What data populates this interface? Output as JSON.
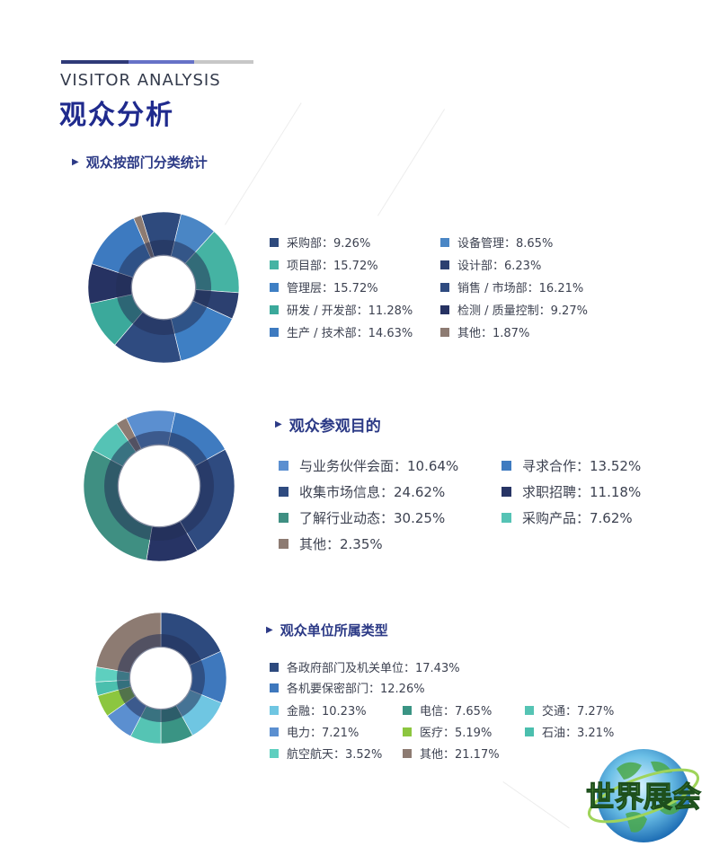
{
  "header": {
    "en_title": "VISITOR ANALYSIS",
    "cn_title": "观众分析"
  },
  "logo": {
    "text": "世界展会"
  },
  "colors": {
    "navy": "#2d4a7e",
    "blue": "#4a86c5",
    "teal": "#46b4a6",
    "mint": "#5ccdbd",
    "steel": "#3e75b8",
    "dark": "#2a3466",
    "green": "#3f8f82",
    "sky": "#6fc6e2",
    "lime": "#8cc63f",
    "brown": "#8d7b72"
  },
  "chart_data": [
    {
      "type": "pie",
      "variant": "donut",
      "title": "观众按部门分类统计",
      "legend_position": "right",
      "series": [
        {
          "label": "采购部",
          "value": 9.26,
          "display": "采购部：9.26%",
          "color": "#2e4a7d"
        },
        {
          "label": "设备管理",
          "value": 8.65,
          "display": "设备管理：8.65%",
          "color": "#4a86c5"
        },
        {
          "label": "项目部",
          "value": 15.72,
          "display": "项目部：15.72%",
          "color": "#45b3a3"
        },
        {
          "label": "设计部",
          "value": 6.23,
          "display": "设计部：6.23%",
          "color": "#2c4070"
        },
        {
          "label": "管理层",
          "value": 15.72,
          "display": "管理层：15.72%",
          "color": "#3e7fc4"
        },
        {
          "label": "销售 / 市场部",
          "value": 16.21,
          "display": "销售 / 市场部：16.21%",
          "color": "#2f4b80"
        },
        {
          "label": "研发 / 开发部",
          "value": 11.28,
          "display": "研发 / 开发部：11.28%",
          "color": "#3ba99b"
        },
        {
          "label": "检测 / 质量控制",
          "value": 9.27,
          "display": "检测 / 质量控制：9.27%",
          "color": "#263262"
        },
        {
          "label": "生产 / 技术部",
          "value": 14.63,
          "display": "生产 / 技术部：14.63%",
          "color": "#3d7ac0"
        },
        {
          "label": "其他",
          "value": 1.87,
          "display": "其他：1.87%",
          "color": "#8d7b72"
        }
      ]
    },
    {
      "type": "pie",
      "variant": "donut",
      "title": "观众参观目的",
      "legend_position": "right",
      "series": [
        {
          "label": "与业务伙伴会面",
          "value": 10.64,
          "display": "与业务伙伴会面：10.64%",
          "color": "#5b8fd0"
        },
        {
          "label": "寻求合作",
          "value": 13.52,
          "display": "寻求合作：13.52%",
          "color": "#3f7bc0"
        },
        {
          "label": "收集市场信息",
          "value": 24.62,
          "display": "收集市场信息：24.62%",
          "color": "#2f4b80"
        },
        {
          "label": "求职招聘",
          "value": 11.18,
          "display": "求职招聘：11.18%",
          "color": "#273465"
        },
        {
          "label": "了解行业动态",
          "value": 30.25,
          "display": "了解行业动态：30.25%",
          "color": "#3f8f82"
        },
        {
          "label": "采购产品",
          "value": 7.62,
          "display": "采购产品：7.62%",
          "color": "#55c3b5"
        },
        {
          "label": "其他",
          "value": 2.35,
          "display": "其他：2.35%",
          "color": "#8d7b72"
        }
      ]
    },
    {
      "type": "pie",
      "variant": "donut",
      "title": "观众单位所属类型",
      "legend_position": "right",
      "series": [
        {
          "label": "各政府部门及机关单位",
          "value": 17.43,
          "display": "各政府部门及机关单位：17.43%",
          "color": "#2d4a7e"
        },
        {
          "label": "各机要保密部门",
          "value": 12.26,
          "display": "各机要保密部门：12.26%",
          "color": "#3e78bd"
        },
        {
          "label": "金融",
          "value": 10.23,
          "display": "金融：10.23%",
          "color": "#6fc6e2"
        },
        {
          "label": "电信",
          "value": 7.65,
          "display": "电信：7.65%",
          "color": "#3a9484"
        },
        {
          "label": "交通",
          "value": 7.27,
          "display": "交通：7.27%",
          "color": "#55c4b4"
        },
        {
          "label": "电力",
          "value": 7.21,
          "display": "电力：7.21%",
          "color": "#5b8fd0"
        },
        {
          "label": "医疗",
          "value": 5.19,
          "display": "医疗：5.19%",
          "color": "#8cc63f"
        },
        {
          "label": "石油",
          "value": 3.21,
          "display": "石油：3.21%",
          "color": "#4bbfae"
        },
        {
          "label": "航空航天",
          "value": 3.52,
          "display": "航空航天：3.52%",
          "color": "#5ecfbf"
        },
        {
          "label": "其他",
          "value": 21.17,
          "display": "其他：21.17%",
          "color": "#8d7b72"
        }
      ]
    }
  ]
}
